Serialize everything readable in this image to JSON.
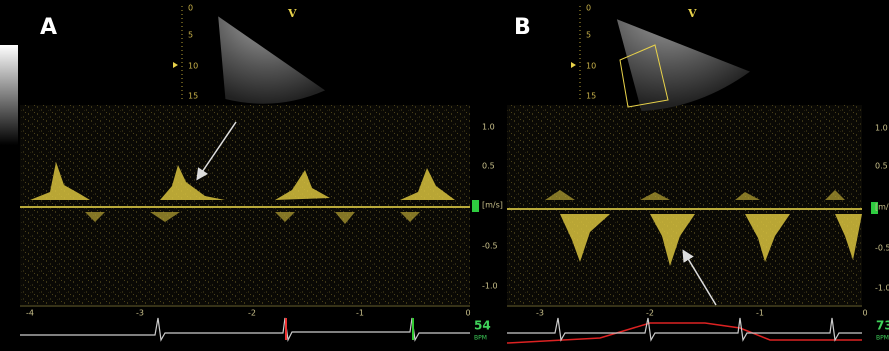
{
  "panels": [
    {
      "label": "A",
      "marker": "V",
      "depth_ticks": [
        "0",
        "5",
        "10",
        "15"
      ],
      "velocity_ticks": [
        "1.0",
        "0.5",
        "[m/s]",
        "-0.5",
        "-1.0"
      ],
      "time_ticks": [
        "-4",
        "-3",
        "-2",
        "-1",
        "0"
      ],
      "heart_rate": "54",
      "heart_rate_unit": "BPM"
    },
    {
      "label": "B",
      "marker": "V",
      "depth_ticks": [
        "0",
        "5",
        "10",
        "15"
      ],
      "velocity_ticks": [
        "1.0",
        "0.5",
        "[m/s]",
        "-0.5",
        "-1.0"
      ],
      "time_ticks": [
        "-3",
        "-2",
        "-1",
        "0"
      ],
      "heart_rate": "73",
      "heart_rate_unit": "BPM"
    }
  ]
}
